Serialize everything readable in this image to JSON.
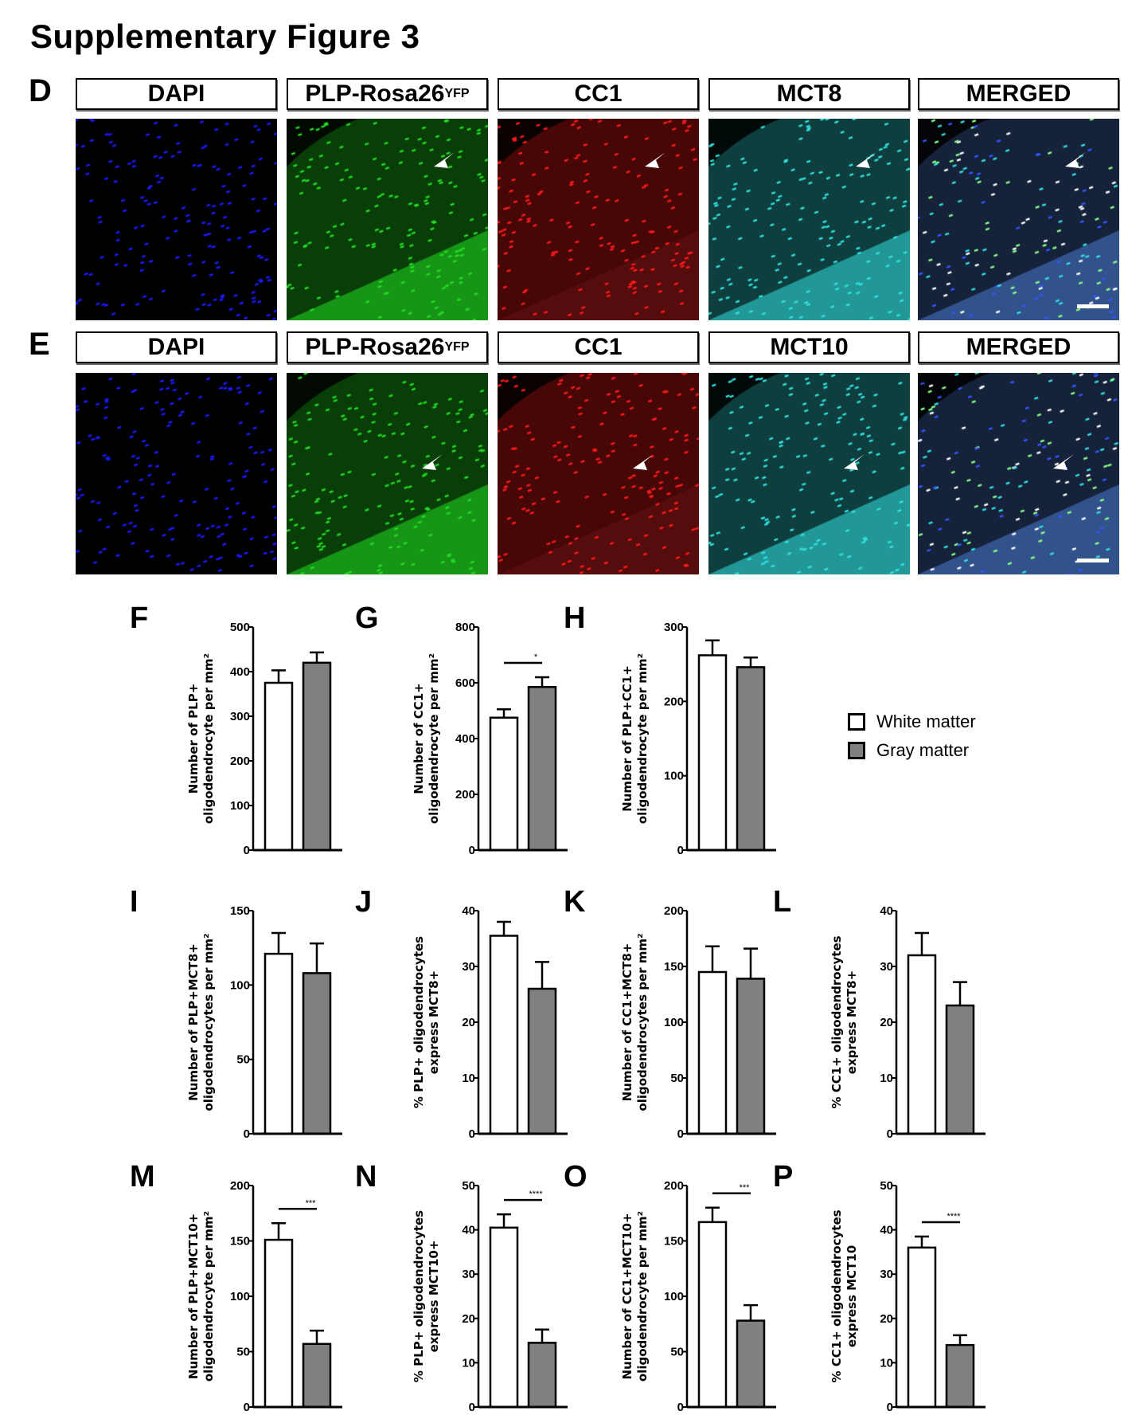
{
  "title": "Supplementary Figure 3",
  "rows": [
    {
      "label": "D",
      "headers": [
        "DAPI",
        "PLP-Rosa26",
        "CC1",
        "MCT8",
        "MERGED"
      ],
      "superscript": "YFP"
    },
    {
      "label": "E",
      "headers": [
        "DAPI",
        "PLP-Rosa26",
        "CC1",
        "MCT10",
        "MERGED"
      ],
      "superscript": "YFP"
    }
  ],
  "channel_colors": {
    "DAPI": "#1a1aff",
    "PLP": "#22dd22",
    "CC1": "#ff1a1a",
    "MCT": "#33e0e0",
    "merged": "#4a7ad0"
  },
  "legend": {
    "items": [
      {
        "label": "White matter",
        "color": "#ffffff"
      },
      {
        "label": "Gray matter",
        "color": "#808080"
      }
    ]
  },
  "chart_data": [
    {
      "panel": "F",
      "type": "bar",
      "categories": [
        "White matter",
        "Gray matter"
      ],
      "values": [
        375,
        420
      ],
      "errors": [
        28,
        23
      ],
      "ylim": [
        0,
        500
      ],
      "yticks": [
        0,
        100,
        200,
        300,
        400,
        500
      ],
      "ylabel": [
        "Number of PLP+",
        "oligodendrocyte per mm²"
      ],
      "significance": ""
    },
    {
      "panel": "G",
      "type": "bar",
      "categories": [
        "White matter",
        "Gray matter"
      ],
      "values": [
        475,
        585
      ],
      "errors": [
        30,
        35
      ],
      "ylim": [
        0,
        800
      ],
      "yticks": [
        0,
        200,
        400,
        600,
        800
      ],
      "ylabel": [
        "Number of CC1+",
        "oligodendrocyte per mm²"
      ],
      "significance": "*"
    },
    {
      "panel": "H",
      "type": "bar",
      "categories": [
        "White matter",
        "Gray matter"
      ],
      "values": [
        262,
        246
      ],
      "errors": [
        20,
        13
      ],
      "ylim": [
        0,
        300
      ],
      "yticks": [
        0,
        100,
        200,
        300
      ],
      "ylabel": [
        "Number of PLP+CC1+",
        "oligodendrocyte per mm²"
      ],
      "significance": ""
    },
    {
      "panel": "I",
      "type": "bar",
      "categories": [
        "White matter",
        "Gray matter"
      ],
      "values": [
        121,
        108
      ],
      "errors": [
        14,
        20
      ],
      "ylim": [
        0,
        150
      ],
      "yticks": [
        0,
        50,
        100,
        150
      ],
      "ylabel": [
        "Number of PLP+MCT8+",
        "oligodendrocytes per mm²"
      ],
      "significance": ""
    },
    {
      "panel": "J",
      "type": "bar",
      "categories": [
        "White matter",
        "Gray matter"
      ],
      "values": [
        35.5,
        26
      ],
      "errors": [
        2.5,
        4.8
      ],
      "ylim": [
        0,
        40
      ],
      "yticks": [
        0,
        10,
        20,
        30,
        40
      ],
      "ylabel": [
        "% PLP+ oligodendrocytes",
        "express MCT8+"
      ],
      "significance": ""
    },
    {
      "panel": "K",
      "type": "bar",
      "categories": [
        "White matter",
        "Gray matter"
      ],
      "values": [
        145,
        139
      ],
      "errors": [
        23,
        27
      ],
      "ylim": [
        0,
        200
      ],
      "yticks": [
        0,
        50,
        100,
        150,
        200
      ],
      "ylabel": [
        "Number of CC1+MCT8+",
        "oligodendrocytes per mm²"
      ],
      "significance": ""
    },
    {
      "panel": "L",
      "type": "bar",
      "categories": [
        "White matter",
        "Gray matter"
      ],
      "values": [
        32,
        23
      ],
      "errors": [
        4,
        4.2
      ],
      "ylim": [
        0,
        40
      ],
      "yticks": [
        0,
        10,
        20,
        30,
        40
      ],
      "ylabel": [
        "% CC1+ oligodendrocytes",
        "express MCT8+"
      ],
      "significance": ""
    },
    {
      "panel": "M",
      "type": "bar",
      "categories": [
        "White matter",
        "Gray matter"
      ],
      "values": [
        151,
        57
      ],
      "errors": [
        15,
        12
      ],
      "ylim": [
        0,
        200
      ],
      "yticks": [
        0,
        50,
        100,
        150,
        200
      ],
      "ylabel": [
        "Number of PLP+MCT10+",
        "oligodendrocyte per mm²"
      ],
      "significance": "***"
    },
    {
      "panel": "N",
      "type": "bar",
      "categories": [
        "White matter",
        "Gray matter"
      ],
      "values": [
        40.5,
        14.5
      ],
      "errors": [
        3,
        3
      ],
      "ylim": [
        0,
        50
      ],
      "yticks": [
        0,
        10,
        20,
        30,
        40,
        50
      ],
      "ylabel": [
        "% PLP+ oligodendrocytes",
        "express MCT10+"
      ],
      "significance": "****"
    },
    {
      "panel": "O",
      "type": "bar",
      "categories": [
        "White matter",
        "Gray matter"
      ],
      "values": [
        167,
        78
      ],
      "errors": [
        13,
        14
      ],
      "ylim": [
        0,
        200
      ],
      "yticks": [
        0,
        50,
        100,
        150,
        200
      ],
      "ylabel": [
        "Number of CC1+MCT10+",
        "oligodendrocyte per mm²"
      ],
      "significance": "***"
    },
    {
      "panel": "P",
      "type": "bar",
      "categories": [
        "White matter",
        "Gray matter"
      ],
      "values": [
        36,
        14
      ],
      "errors": [
        2.5,
        2.2
      ],
      "ylim": [
        0,
        50
      ],
      "yticks": [
        0,
        10,
        20,
        30,
        40,
        50
      ],
      "ylabel": [
        "% CC1+ oligodendrocytes",
        "express MCT10"
      ],
      "significance": "****"
    }
  ]
}
